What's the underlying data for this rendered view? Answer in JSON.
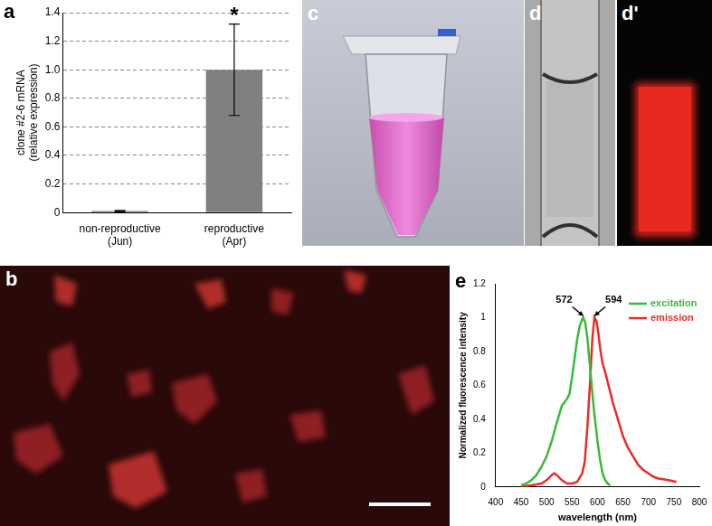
{
  "chart_data": [
    {
      "panel": "a",
      "type": "bar",
      "categories": [
        "non-reproductive\n(Jun)",
        "reproductive\n(Apr)"
      ],
      "values": [
        0.01,
        1.0
      ],
      "errors": [
        0.005,
        0.32
      ],
      "color": "#808080",
      "y_label": "clone #2-6 mRNA\n(relative expression)",
      "ylim": [
        0,
        1.4
      ],
      "yticks": [
        0,
        0.2,
        0.4,
        0.6,
        0.8,
        {
          "value": 1,
          "label": "1.0"
        },
        1.2,
        1.4
      ],
      "grid": true,
      "annotations": [
        {
          "text": "*",
          "category": "reproductive\n(Apr)"
        }
      ]
    },
    {
      "panel": "e",
      "type": "line",
      "x_label": "wavelength (nm)",
      "y_label": "Normalized fluorescence intensity",
      "xlim": [
        400,
        800
      ],
      "xticks": [
        400,
        450,
        500,
        550,
        600,
        650,
        700,
        750,
        800
      ],
      "ylim": [
        0,
        1.2
      ],
      "yticks": [
        0,
        0.2,
        0.4,
        0.6,
        0.8,
        1,
        1.2
      ],
      "grid": false,
      "legend": "upper right",
      "series": [
        {
          "name": "excitation",
          "color": "#3cb83c",
          "x": [
            450,
            460,
            470,
            480,
            490,
            500,
            510,
            520,
            530,
            540,
            545,
            550,
            555,
            560,
            565,
            570,
            572,
            576,
            580,
            585,
            590,
            595,
            600,
            605,
            610,
            615,
            620,
            625
          ],
          "values": [
            0.01,
            0.02,
            0.04,
            0.07,
            0.12,
            0.18,
            0.27,
            0.38,
            0.48,
            0.52,
            0.55,
            0.65,
            0.76,
            0.87,
            0.95,
            0.99,
            1.0,
            0.97,
            0.88,
            0.72,
            0.55,
            0.4,
            0.27,
            0.16,
            0.08,
            0.04,
            0.02,
            0.01
          ]
        },
        {
          "name": "emission",
          "color": "#ee2a24",
          "x": [
            450,
            470,
            490,
            500,
            510,
            515,
            520,
            530,
            540,
            550,
            560,
            570,
            575,
            580,
            585,
            590,
            594,
            598,
            602,
            606,
            610,
            615,
            620,
            630,
            640,
            650,
            660,
            670,
            680,
            690,
            700,
            710,
            720,
            740,
            755
          ],
          "values": [
            0.0,
            0.01,
            0.02,
            0.04,
            0.07,
            0.08,
            0.07,
            0.04,
            0.02,
            0.02,
            0.03,
            0.08,
            0.15,
            0.35,
            0.6,
            0.88,
            1.0,
            0.98,
            0.9,
            0.8,
            0.73,
            0.68,
            0.62,
            0.5,
            0.4,
            0.3,
            0.23,
            0.18,
            0.13,
            0.1,
            0.08,
            0.06,
            0.05,
            0.04,
            0.03
          ]
        }
      ],
      "annotations": [
        {
          "text": "572",
          "x": 572,
          "y": 1.0
        },
        {
          "text": "594",
          "x": 594,
          "y": 1.0
        }
      ]
    }
  ],
  "image_panels": [
    {
      "label": "b"
    },
    {
      "label": "c"
    },
    {
      "label": "d"
    },
    {
      "label": "d'"
    }
  ]
}
